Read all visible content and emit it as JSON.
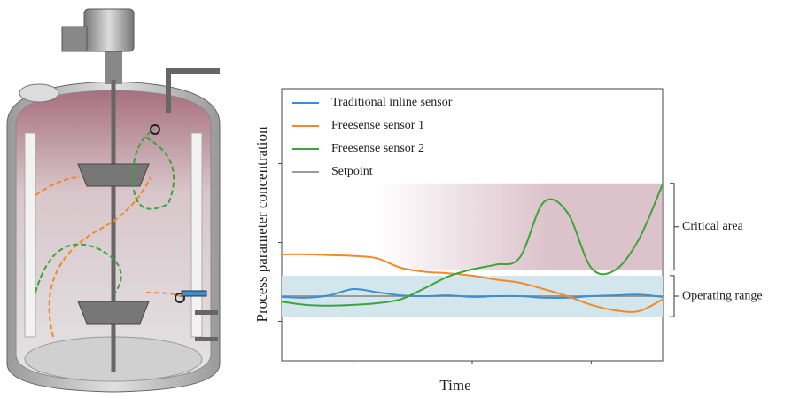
{
  "chart_data": {
    "type": "line",
    "y_label": "Process parameter concentration",
    "x_label": "Time",
    "x": [
      0.4,
      0.6,
      0.8,
      1.0,
      1.2,
      1.4,
      1.6,
      1.8,
      2.0,
      2.2,
      2.4,
      2.6,
      2.8,
      3.0,
      3.2,
      3.4,
      3.6
    ],
    "xlim": [
      0.4,
      3.6
    ],
    "xticks": [
      1,
      2,
      3
    ],
    "ylim": [
      0,
      3.45
    ],
    "yticks": [
      0.5,
      1.5,
      2.5
    ],
    "legend": "upper left",
    "series": [
      {
        "name": "Traditional inline sensor",
        "color": "#3b8fcf",
        "values": [
          0.81,
          0.8,
          0.83,
          0.91,
          0.87,
          0.83,
          0.82,
          0.83,
          0.81,
          0.82,
          0.82,
          0.8,
          0.8,
          0.82,
          0.83,
          0.84,
          0.81
        ]
      },
      {
        "name": "Freesense sensor 1",
        "color": "#f0892a",
        "values": [
          1.35,
          1.35,
          1.34,
          1.33,
          1.3,
          1.18,
          1.13,
          1.11,
          1.08,
          1.03,
          0.99,
          0.91,
          0.82,
          0.71,
          0.64,
          0.63,
          0.78
        ]
      },
      {
        "name": "Freesense sensor 2",
        "color": "#3aa53a",
        "values": [
          0.75,
          0.71,
          0.7,
          0.71,
          0.73,
          0.78,
          0.92,
          1.07,
          1.16,
          1.22,
          1.31,
          2.01,
          1.88,
          1.18,
          1.15,
          1.54,
          2.24
        ]
      },
      {
        "name": "Setpoint",
        "color": "#9a9a9a",
        "values": [
          0.82,
          0.82,
          0.82,
          0.82,
          0.82,
          0.82,
          0.82,
          0.82,
          0.82,
          0.82,
          0.82,
          0.82,
          0.82,
          0.82,
          0.82,
          0.82,
          0.82
        ]
      }
    ],
    "bands": [
      {
        "label": "Critical area",
        "range": [
          1.15,
          2.25
        ],
        "x_range": [
          1.2,
          3.6
        ],
        "color": "#c49aa8"
      },
      {
        "label": "Operating range",
        "range": [
          0.56,
          1.08
        ],
        "x_range": [
          0.4,
          3.6
        ],
        "color": "#d3e6ee"
      }
    ]
  }
}
